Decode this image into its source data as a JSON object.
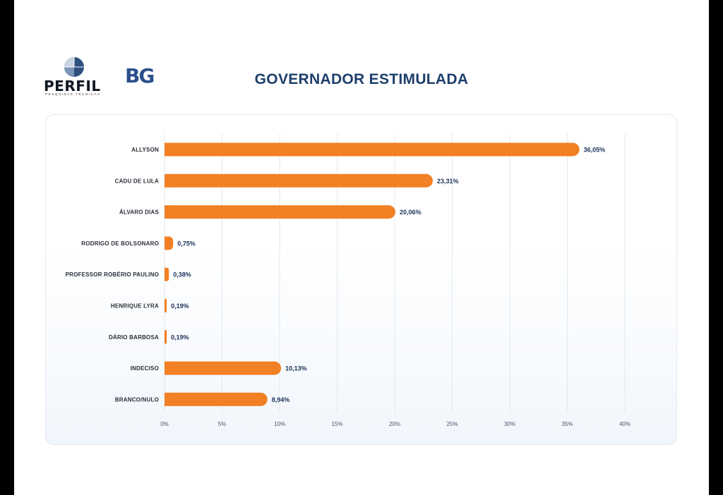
{
  "logos": {
    "perfil_name": "PERFIL",
    "perfil_tagline": "PESQUISAS TÉCNICAS",
    "bg_name": "BG"
  },
  "colors": {
    "bar": "#f28024",
    "title": "#1d3f6b",
    "value_text": "#1d3156",
    "grid": "#e3e7ec"
  },
  "chart_data": {
    "type": "bar",
    "orientation": "horizontal",
    "title": "GOVERNADOR ESTIMULADA",
    "categories": [
      "ALLYSON",
      "CADU DE LULA",
      "ÁLVARO DIAS",
      "RODRIGO DE BOLSONARO",
      "PROFESSOR ROBÉRIO PAULINO",
      "HENRIQUE LYRA",
      "DÁRIO BARBOSA",
      "INDECISO",
      "BRANCO/NULO"
    ],
    "values": [
      36.05,
      23.31,
      20.06,
      0.75,
      0.38,
      0.19,
      0.19,
      10.13,
      8.94
    ],
    "value_labels": [
      "36,05%",
      "23,31%",
      "20,06%",
      "0,75%",
      "0,38%",
      "0,19%",
      "0,19%",
      "10,13%",
      "8,94%"
    ],
    "xlim": [
      0,
      40
    ],
    "xticks": [
      0,
      5,
      10,
      15,
      20,
      25,
      30,
      35,
      40
    ],
    "xtick_labels": [
      "0%",
      "5%",
      "10%",
      "15%",
      "20%",
      "25%",
      "30%",
      "35%",
      "40%"
    ],
    "grid": true,
    "legend": "none"
  }
}
